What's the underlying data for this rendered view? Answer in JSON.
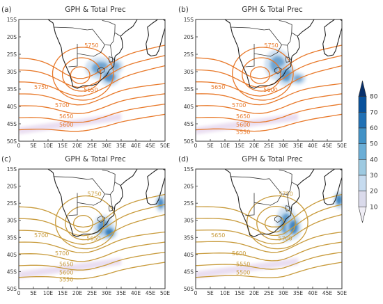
{
  "chart_data": {
    "type": "contour-map",
    "panels": [
      {
        "label": "(a)",
        "title": "GPH & Total Prec",
        "contour_labels": [
          "5750",
          "5650",
          "5750",
          "5700",
          "5650",
          "5600"
        ],
        "gph_color": "#e8792a",
        "low_center": [
          21,
          -31
        ],
        "high_lat_band": -45,
        "precip": [
          [
            28,
            -29,
            3,
            1.8,
            0.55
          ],
          [
            31,
            -31.5,
            2,
            1.5,
            0.7
          ],
          [
            33,
            -28.5,
            1.5,
            1.2,
            0.45
          ]
        ]
      },
      {
        "label": "(b)",
        "title": "GPH & Total Prec",
        "contour_labels": [
          "5750",
          "5600",
          "5650",
          "5700",
          "5650",
          "5600",
          "5550"
        ],
        "gph_color": "#e8792a",
        "low_center": [
          22,
          -31
        ],
        "high_lat_band": -45,
        "precip": [
          [
            28,
            -28,
            2.5,
            2.5,
            0.55
          ],
          [
            31,
            -31,
            2,
            1.8,
            0.65
          ],
          [
            35,
            -32,
            1.5,
            1,
            0.5
          ]
        ]
      },
      {
        "label": "(c)",
        "title": "GPH & Total Prec",
        "contour_labels": [
          "5750",
          "5650",
          "5700",
          "5700",
          "5650",
          "5600",
          "5550"
        ],
        "gph_color": "#c89b3c",
        "low_center": [
          22,
          -31
        ],
        "high_lat_band": -44,
        "precip": [
          [
            29,
            -32,
            2,
            2,
            0.7
          ],
          [
            31,
            -33.5,
            1.5,
            1.2,
            0.85
          ],
          [
            48.5,
            -25,
            1,
            1.5,
            0.8
          ]
        ]
      },
      {
        "label": "(d)",
        "title": "GPH & Total Prec",
        "contour_labels": [
          "5750",
          "5700",
          "5650",
          "5600",
          "5550",
          "5500"
        ],
        "gph_color": "#c89b3c",
        "low_center": [
          27,
          -31
        ],
        "high_lat_band": -44,
        "precip": [
          [
            31,
            -31,
            2,
            3,
            0.65
          ],
          [
            33.5,
            -32,
            1.5,
            2,
            0.8
          ],
          [
            49,
            -24,
            1,
            1.5,
            0.85
          ]
        ]
      }
    ],
    "x_ticks": [
      "0",
      "5E",
      "10E",
      "15E",
      "20E",
      "25E",
      "30E",
      "35E",
      "40E",
      "45E",
      "50E"
    ],
    "y_ticks": [
      "15S",
      "20S",
      "25S",
      "30S",
      "35S",
      "40S",
      "45S",
      "50S"
    ],
    "xlim": [
      0,
      50
    ],
    "ylim": [
      -50,
      -15
    ],
    "colorbar": {
      "ticks": [
        "80",
        "70",
        "60",
        "50",
        "40",
        "30",
        "20",
        "10"
      ],
      "colors": [
        "#08306b",
        "#08519c",
        "#2171b5",
        "#4292c6",
        "#6baed6",
        "#9ecae1",
        "#c6dbef",
        "#dadaeb",
        "#efedf5"
      ]
    }
  }
}
